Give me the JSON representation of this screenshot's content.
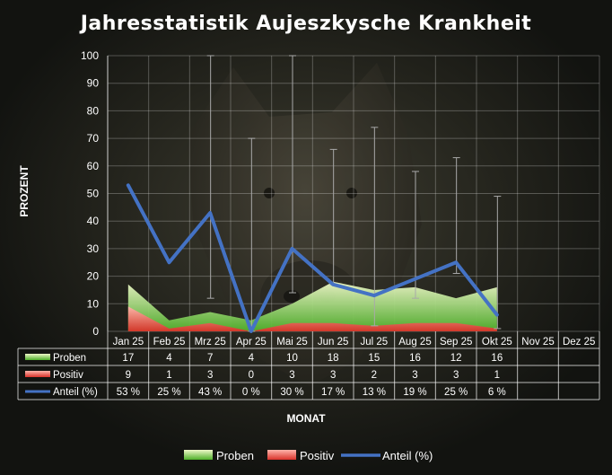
{
  "chart_data": {
    "type": "area",
    "title": "Jahresstatistik Aujeszkysche Krankheit",
    "xlabel": "MONAT",
    "ylabel": "PROZENT",
    "ylim": [
      0,
      100
    ],
    "yticks": [
      0,
      10,
      20,
      30,
      40,
      50,
      60,
      70,
      80,
      90,
      100
    ],
    "categories": [
      "Jan 25",
      "Feb 25",
      "Mrz 25",
      "Apr 25",
      "Mai 25",
      "Jun 25",
      "Jul 25",
      "Aug 25",
      "Sep 25",
      "Okt 25",
      "Nov 25",
      "Dez 25"
    ],
    "series": [
      {
        "name": "Proben",
        "type": "area",
        "color": "#6fd13a",
        "values": [
          17,
          4,
          7,
          4,
          10,
          18,
          15,
          16,
          12,
          16,
          null,
          null
        ]
      },
      {
        "name": "Positiv",
        "type": "area",
        "color": "#e8473c",
        "values": [
          9,
          1,
          3,
          0,
          3,
          3,
          2,
          3,
          3,
          1,
          null,
          null
        ]
      },
      {
        "name": "Anteil (%)",
        "type": "line",
        "color": "#4472c4",
        "values": [
          53,
          25,
          43,
          0,
          30,
          17,
          13,
          19,
          25,
          6,
          null,
          null
        ]
      }
    ],
    "table": {
      "rows": [
        {
          "label": "Proben",
          "cells": [
            "17",
            "4",
            "7",
            "4",
            "10",
            "18",
            "15",
            "16",
            "12",
            "16",
            "",
            ""
          ]
        },
        {
          "label": "Positiv",
          "cells": [
            "9",
            "1",
            "3",
            "0",
            "3",
            "3",
            "2",
            "3",
            "3",
            "1",
            "",
            ""
          ]
        },
        {
          "label": "Anteil (%)",
          "cells": [
            "53 %",
            "25 %",
            "43 %",
            "0 %",
            "30 %",
            "17 %",
            "13 %",
            "19 %",
            "25 %",
            "6 %",
            "",
            ""
          ]
        }
      ]
    },
    "error_bars": [
      {
        "category": "Mrz 25",
        "low": 12,
        "high": 100
      },
      {
        "category": "Apr 25",
        "low": 0,
        "high": 70
      },
      {
        "category": "Mai 25",
        "low": 14,
        "high": 100
      },
      {
        "category": "Jun 25",
        "low": 17,
        "high": 66
      },
      {
        "category": "Jul 25",
        "low": 2,
        "high": 74
      },
      {
        "category": "Aug 25",
        "low": 12,
        "high": 58
      },
      {
        "category": "Sep 25",
        "low": 21,
        "high": 63
      },
      {
        "category": "Okt 25",
        "low": 1,
        "high": 49
      }
    ],
    "grid": true,
    "legend": "bottom"
  }
}
